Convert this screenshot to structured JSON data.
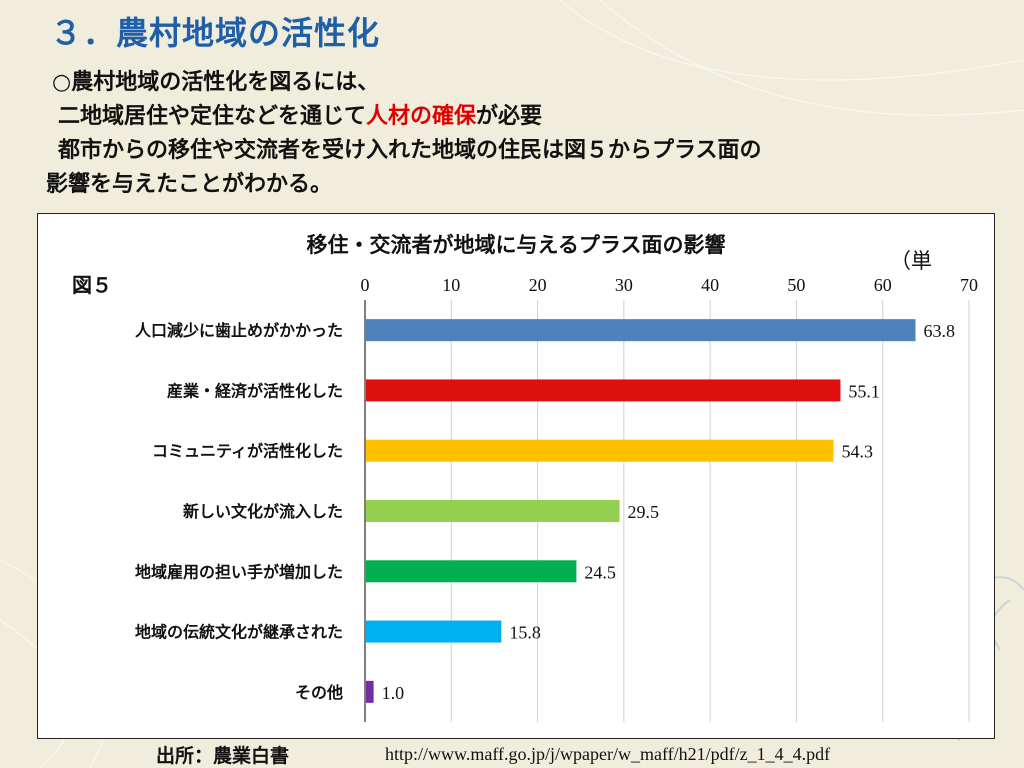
{
  "slide": {
    "title": "３．農村地域の活性化",
    "intro_line1": "○農村地域の活性化を図るには、",
    "intro_line2_pre": "二地域居住や定住などを通じて",
    "intro_line2_highlight": "人材の確保",
    "intro_line2_post": "が必要",
    "intro_line3": "都市からの移住や交流者を受け入れた地域の住民は図５からプラス面の",
    "intro_line4": "影響を与えたことがわかる。",
    "source_label": "出所：農業白書",
    "source_url": "http://www.maff.go.jp/j/wpaper/w_maff/h21/pdf/z_1_4_4.pdf"
  },
  "colors": {
    "title": "#1f5fa8",
    "highlight": "#e00000"
  },
  "chart_data": {
    "type": "bar",
    "orientation": "horizontal",
    "title": "移住・交流者が地域に与えるプラス面の影響",
    "figure_label": "図５",
    "unit_note": "（単",
    "xlim": [
      0,
      70
    ],
    "xticks": [
      "0",
      "10",
      "20",
      "30",
      "40",
      "50",
      "60",
      "70"
    ],
    "grid": true,
    "categories": [
      "人口減少に歯止めがかかった",
      "産業・経済が活性化した",
      "コミュニティが活性化した",
      "新しい文化が流入した",
      "地域雇用の担い手が増加した",
      "地域の伝統文化が継承された",
      "その他"
    ],
    "values": [
      63.8,
      55.1,
      54.3,
      29.5,
      24.5,
      15.8,
      1.0
    ],
    "value_labels": [
      "63.8",
      "55.1",
      "54.3",
      "29.5",
      "24.5",
      "15.8",
      "1.0"
    ],
    "bar_colors": [
      "#4f81bd",
      "#e01010",
      "#ffc000",
      "#92d050",
      "#00b050",
      "#00b0f0",
      "#7030a0"
    ]
  }
}
